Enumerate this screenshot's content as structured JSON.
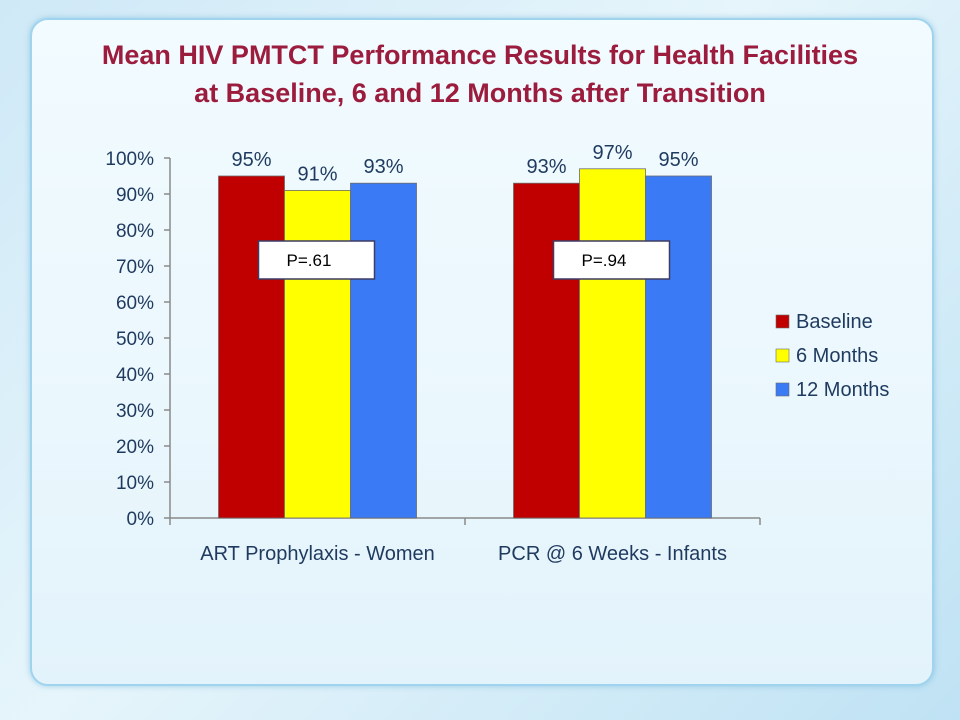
{
  "title_lines": [
    "Mean HIV PMTCT Performance Results for Health Facilities",
    "at Baseline, 6 and 12 Months after Transition"
  ],
  "chart_data": {
    "type": "bar",
    "title": "Mean HIV PMTCT Performance Results for Health Facilities at Baseline, 6 and 12 Months after Transition",
    "categories": [
      "ART Prophylaxis - Women",
      "PCR @ 6 Weeks - Infants"
    ],
    "series": [
      {
        "name": "Baseline",
        "values": [
          95,
          93
        ],
        "labels": [
          "95%",
          "93%"
        ],
        "color": "#c00000"
      },
      {
        "name": "6 Months",
        "values": [
          91,
          97
        ],
        "labels": [
          "91%",
          "97%"
        ],
        "color": "#ffff00"
      },
      {
        "name": "12 Months",
        "values": [
          93,
          95
        ],
        "labels": [
          "93%",
          "95%"
        ],
        "color": "#3a7bf5"
      }
    ],
    "ylim": [
      0,
      100
    ],
    "yticks": [
      0,
      10,
      20,
      30,
      40,
      50,
      60,
      70,
      80,
      90,
      100
    ],
    "ytick_labels": [
      "0%",
      "10%",
      "20%",
      "30%",
      "40%",
      "50%",
      "60%",
      "70%",
      "80%",
      "90%",
      "100%"
    ],
    "annotations": [
      "P=.61",
      "P=.94"
    ],
    "legend_position": "right",
    "grid": false
  }
}
